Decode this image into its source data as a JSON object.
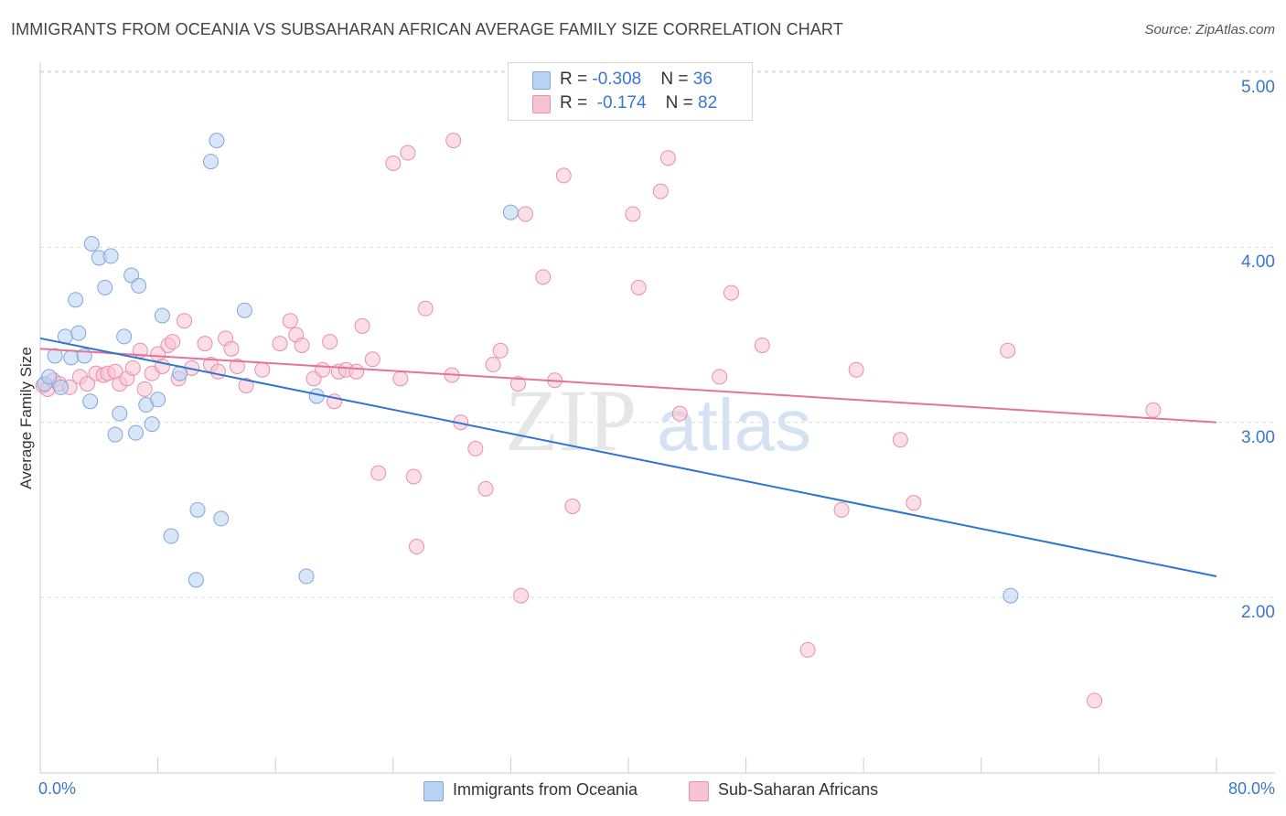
{
  "title": "IMMIGRANTS FROM OCEANIA VS SUBSAHARAN AFRICAN AVERAGE FAMILY SIZE CORRELATION CHART",
  "source": "Source: ZipAtlas.com",
  "watermark": {
    "zip": "ZIP",
    "atlas": "atlas"
  },
  "colors": {
    "blue_fill": "#b9d1f3",
    "blue_stroke": "#7fa6dd",
    "blue_line": "#2f74d0",
    "pink_fill": "#f7c3d3",
    "pink_stroke": "#e88fab",
    "pink_line": "#e5729a",
    "grid": "#dddddd",
    "tick_text": "#3a76d0"
  },
  "legend": {
    "rows": [
      {
        "r_label": "R = ",
        "r_value": "-0.308",
        "n_label": "N = ",
        "n_value": "36"
      },
      {
        "r_label": "R = ",
        "r_value": " -0.174",
        "n_label": "N = ",
        "n_value": "82"
      }
    ]
  },
  "chart_data": {
    "type": "scatter",
    "title": "IMMIGRANTS FROM OCEANIA VS SUBSAHARAN AFRICAN AVERAGE FAMILY SIZE CORRELATION CHART",
    "xlabel": "",
    "ylabel": "Average Family Size",
    "xlim": [
      0,
      80
    ],
    "ylim": [
      1.1,
      5.15
    ],
    "x_tick_labels": [
      "0.0%",
      "80.0%"
    ],
    "y_ticks": [
      2.0,
      3.0,
      4.0,
      5.0
    ],
    "y_tick_labels": [
      "2.00",
      "3.00",
      "4.00",
      "5.00"
    ],
    "grid": true,
    "legend_position": "bottom",
    "series": [
      {
        "name": "Immigrants from Oceania",
        "color": "#b9d1f3",
        "trend": {
          "x": [
            0,
            80
          ],
          "y": [
            3.48,
            2.12
          ]
        },
        "points": [
          [
            0.3,
            3.22
          ],
          [
            0.6,
            3.26
          ],
          [
            1.0,
            3.38
          ],
          [
            1.4,
            3.2
          ],
          [
            1.7,
            3.49
          ],
          [
            2.1,
            3.37
          ],
          [
            2.4,
            3.7
          ],
          [
            2.6,
            3.51
          ],
          [
            3.0,
            3.38
          ],
          [
            3.4,
            3.12
          ],
          [
            3.5,
            4.02
          ],
          [
            4.0,
            3.94
          ],
          [
            4.4,
            3.77
          ],
          [
            4.8,
            3.95
          ],
          [
            5.1,
            2.93
          ],
          [
            5.4,
            3.05
          ],
          [
            5.7,
            3.49
          ],
          [
            6.2,
            3.84
          ],
          [
            6.5,
            2.94
          ],
          [
            6.7,
            3.78
          ],
          [
            7.2,
            3.1
          ],
          [
            7.6,
            2.99
          ],
          [
            8.0,
            3.13
          ],
          [
            8.3,
            3.61
          ],
          [
            8.9,
            2.35
          ],
          [
            9.5,
            3.28
          ],
          [
            11.6,
            4.49
          ],
          [
            12.0,
            4.61
          ],
          [
            12.3,
            2.45
          ],
          [
            13.9,
            3.64
          ],
          [
            10.7,
            2.5
          ],
          [
            10.6,
            2.1
          ],
          [
            18.1,
            2.12
          ],
          [
            18.8,
            3.15
          ],
          [
            32.0,
            4.2
          ],
          [
            66.0,
            2.01
          ]
        ]
      },
      {
        "name": "Sub-Saharan Africans",
        "color": "#f7c3d3",
        "trend": {
          "x": [
            0,
            80
          ],
          "y": [
            3.42,
            3.0
          ]
        },
        "points": [
          [
            0.2,
            3.21
          ],
          [
            0.5,
            3.19
          ],
          [
            0.9,
            3.24
          ],
          [
            1.3,
            3.22
          ],
          [
            2.0,
            3.2
          ],
          [
            2.7,
            3.26
          ],
          [
            3.2,
            3.22
          ],
          [
            3.8,
            3.28
          ],
          [
            4.3,
            3.27
          ],
          [
            4.6,
            3.28
          ],
          [
            5.1,
            3.29
          ],
          [
            5.4,
            3.22
          ],
          [
            5.9,
            3.25
          ],
          [
            6.3,
            3.31
          ],
          [
            6.8,
            3.41
          ],
          [
            7.1,
            3.19
          ],
          [
            7.6,
            3.28
          ],
          [
            8.0,
            3.39
          ],
          [
            8.3,
            3.32
          ],
          [
            8.7,
            3.44
          ],
          [
            9.0,
            3.46
          ],
          [
            9.4,
            3.25
          ],
          [
            9.8,
            3.58
          ],
          [
            10.3,
            3.31
          ],
          [
            11.2,
            3.45
          ],
          [
            11.6,
            3.33
          ],
          [
            12.1,
            3.29
          ],
          [
            12.6,
            3.48
          ],
          [
            13.0,
            3.42
          ],
          [
            13.4,
            3.32
          ],
          [
            14.0,
            3.21
          ],
          [
            15.1,
            3.3
          ],
          [
            16.3,
            3.45
          ],
          [
            17.0,
            3.58
          ],
          [
            17.4,
            3.5
          ],
          [
            17.8,
            3.44
          ],
          [
            18.6,
            3.25
          ],
          [
            19.2,
            3.3
          ],
          [
            19.7,
            3.46
          ],
          [
            20.0,
            3.12
          ],
          [
            20.3,
            3.29
          ],
          [
            20.8,
            3.3
          ],
          [
            21.5,
            3.29
          ],
          [
            21.9,
            3.55
          ],
          [
            22.6,
            3.36
          ],
          [
            23.0,
            2.71
          ],
          [
            24.0,
            4.48
          ],
          [
            24.5,
            3.25
          ],
          [
            25.0,
            4.54
          ],
          [
            25.4,
            2.69
          ],
          [
            25.6,
            2.29
          ],
          [
            26.2,
            3.65
          ],
          [
            28.1,
            4.61
          ],
          [
            28.0,
            3.27
          ],
          [
            28.6,
            3.0
          ],
          [
            29.6,
            2.85
          ],
          [
            30.3,
            2.62
          ],
          [
            30.8,
            3.33
          ],
          [
            31.3,
            3.41
          ],
          [
            32.5,
            3.22
          ],
          [
            33.0,
            4.19
          ],
          [
            32.7,
            2.01
          ],
          [
            34.2,
            3.83
          ],
          [
            35.0,
            3.24
          ],
          [
            35.6,
            4.41
          ],
          [
            36.2,
            2.52
          ],
          [
            40.3,
            4.19
          ],
          [
            40.7,
            3.77
          ],
          [
            42.2,
            4.32
          ],
          [
            42.7,
            4.51
          ],
          [
            43.5,
            3.05
          ],
          [
            46.2,
            3.26
          ],
          [
            47.0,
            3.74
          ],
          [
            49.1,
            3.44
          ],
          [
            52.2,
            1.7
          ],
          [
            54.5,
            2.5
          ],
          [
            55.5,
            3.3
          ],
          [
            58.5,
            2.9
          ],
          [
            59.4,
            2.54
          ],
          [
            65.8,
            3.41
          ],
          [
            71.7,
            1.41
          ],
          [
            75.7,
            3.07
          ]
        ]
      }
    ]
  }
}
